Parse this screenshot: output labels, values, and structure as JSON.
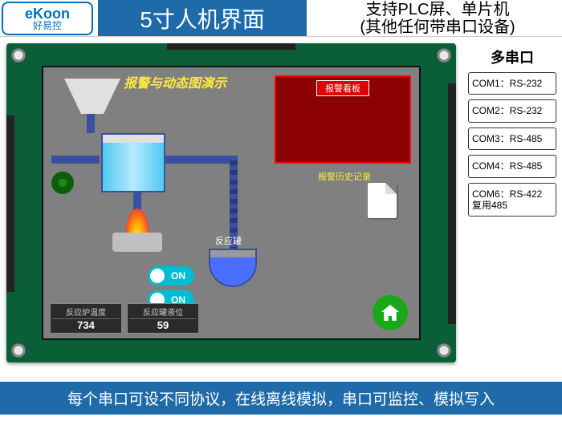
{
  "header": {
    "logo_top": "eKoon",
    "logo_bottom": "好易控",
    "title": "5寸人机界面",
    "subtitle_line1": "支持PLC屏、单片机",
    "subtitle_line2": "(其他任何带串口设备)"
  },
  "right": {
    "title": "多串口",
    "ports": [
      "COM1：RS-232",
      "COM2：RS-232",
      "COM3：RS-485",
      "COM4：RS-485",
      "COM6：RS-422\n复用485"
    ]
  },
  "footer": "每个串口可设不同协议，在线离线模拟，串口可监控、模拟写入",
  "hmi": {
    "scene_title": "报警与动态图演示",
    "alarm_panel_label": "报警看板",
    "history_label": "报警历史记录",
    "beaker_label": "反应罐",
    "toggle1": "ON",
    "toggle2": "ON",
    "meter1_label": "反应炉温度",
    "meter1_value": "734",
    "meter2_label": "反应罐液位",
    "meter2_value": "59"
  },
  "colors": {
    "brand_blue": "#1f6baa",
    "pcb_green": "#0b5f38",
    "lcd_bg": "#808080",
    "accent_yellow": "#ffeb3b",
    "alarm_red": "#8b0000"
  }
}
